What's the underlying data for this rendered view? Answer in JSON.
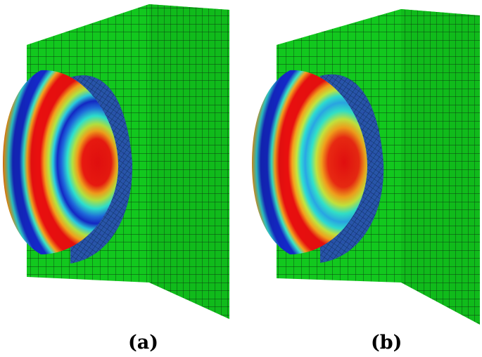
{
  "figure": {
    "panels": [
      {
        "id": "a",
        "caption": "(a)"
      },
      {
        "id": "b",
        "caption": "(b)"
      }
    ],
    "colors": {
      "mesh_fill": "#12c81e",
      "mesh_line": "#0b3d10",
      "field_red": "#e80f0f",
      "field_orange": "#f59a1a",
      "field_yellow": "#c8e63c",
      "field_cyan": "#28e0c8",
      "field_blue": "#1428c8",
      "background": "#ffffff",
      "caption": "#000000"
    }
  }
}
